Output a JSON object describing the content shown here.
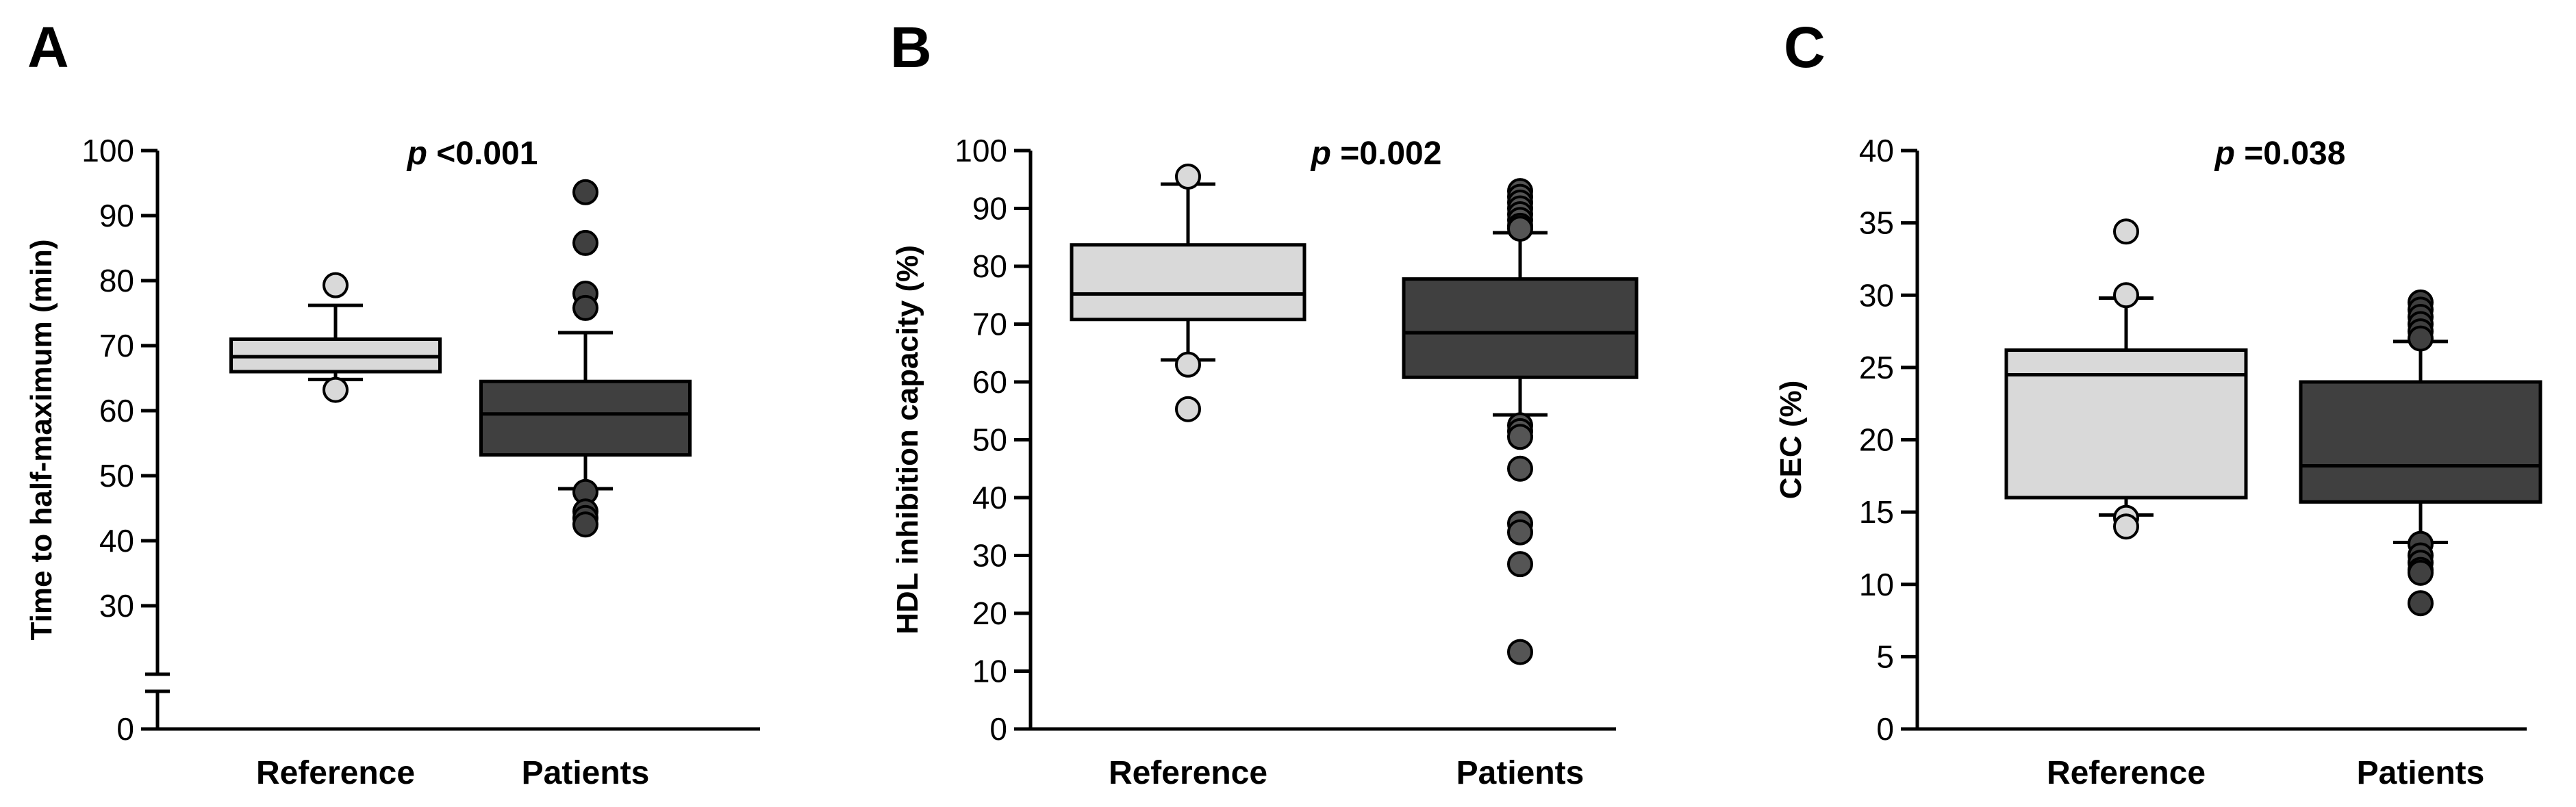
{
  "chart_data": [
    {
      "panel": "A",
      "type": "box",
      "ylabel": "Time to half-maximum (min)",
      "annotation_prefix": "p",
      "annotation_value": " <0.001",
      "ylim": [
        0,
        100
      ],
      "axis_break": {
        "from": 0,
        "to": 30
      },
      "yticks": [
        0,
        30,
        40,
        50,
        60,
        70,
        80,
        90,
        100
      ],
      "ytick_labels": [
        "0",
        "30",
        "40",
        "50",
        "60",
        "70",
        "80",
        "90",
        "100"
      ],
      "categories": [
        "Reference",
        "Patients"
      ],
      "colors": {
        "box": [
          "#d9d9d9",
          "#404040"
        ],
        "outlier": [
          "#d9d9d9",
          "#404040"
        ]
      },
      "boxes": [
        {
          "whisker_low": 64.8,
          "q1": 66.0,
          "median": 68.3,
          "q3": 71.0,
          "whisker_high": 76.2,
          "outliers": [
            79.3,
            63.2
          ]
        },
        {
          "whisker_low": 48.0,
          "q1": 53.2,
          "median": 59.5,
          "q3": 64.5,
          "whisker_high": 72.0,
          "outliers": [
            93.6,
            85.8,
            78.0,
            75.8,
            47.5,
            44.5,
            43.5,
            42.5
          ]
        }
      ]
    },
    {
      "panel": "B",
      "type": "box",
      "ylabel": "HDL inhibition capacity (%)",
      "annotation_prefix": "p",
      "annotation_value": " =0.002",
      "ylim": [
        0,
        100
      ],
      "yticks": [
        0,
        10,
        20,
        30,
        40,
        50,
        60,
        70,
        80,
        90,
        100
      ],
      "ytick_labels": [
        "0",
        "10",
        "20",
        "30",
        "40",
        "50",
        "60",
        "70",
        "80",
        "90",
        "100"
      ],
      "categories": [
        "Reference",
        "Patients"
      ],
      "colors": {
        "box": [
          "#d9d9d9",
          "#404040"
        ],
        "outlier": [
          "#d9d9d9",
          "#555555"
        ]
      },
      "boxes": [
        {
          "whisker_low": 63.8,
          "q1": 70.8,
          "median": 75.2,
          "q3": 83.7,
          "whisker_high": 94.2,
          "outliers": [
            95.5,
            63.0,
            55.3
          ]
        },
        {
          "whisker_low": 54.3,
          "q1": 60.8,
          "median": 68.5,
          "q3": 77.8,
          "whisker_high": 85.8,
          "outliers": [
            93.0,
            92.0,
            91.0,
            90.0,
            89.0,
            88.0,
            87.0,
            86.5,
            52.5,
            51.5,
            50.5,
            45.0,
            35.5,
            34.0,
            28.5,
            13.3
          ]
        }
      ]
    },
    {
      "panel": "C",
      "type": "box",
      "ylabel": "CEC (%)",
      "annotation_prefix": "p",
      "annotation_value": " =0.038",
      "ylim": [
        0,
        40
      ],
      "yticks": [
        0,
        5,
        10,
        15,
        20,
        25,
        30,
        35,
        40
      ],
      "ytick_labels": [
        "0",
        "5",
        "10",
        "15",
        "20",
        "25",
        "30",
        "35",
        "40"
      ],
      "categories": [
        "Reference",
        "Patients"
      ],
      "colors": {
        "box": [
          "#d9d9d9",
          "#404040"
        ],
        "outlier": [
          "#d9d9d9",
          "#404040"
        ]
      },
      "boxes": [
        {
          "whisker_low": 14.8,
          "q1": 16.0,
          "median": 24.5,
          "q3": 26.2,
          "whisker_high": 29.8,
          "outliers": [
            34.4,
            30.0,
            14.6,
            14.0
          ]
        },
        {
          "whisker_low": 12.9,
          "q1": 15.7,
          "median": 18.2,
          "q3": 24.0,
          "whisker_high": 26.8,
          "outliers": [
            29.5,
            29.0,
            28.5,
            28.0,
            27.5,
            27.0,
            12.8,
            12.0,
            11.5,
            11.0,
            10.8,
            8.7
          ]
        }
      ]
    }
  ]
}
